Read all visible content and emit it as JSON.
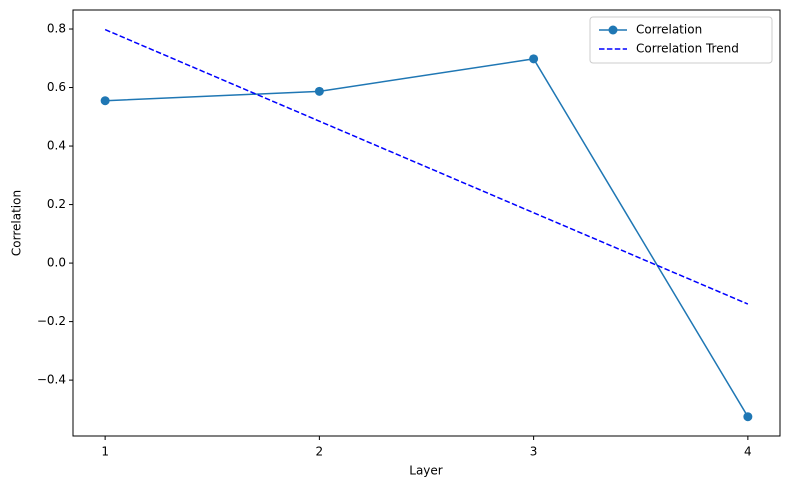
{
  "chart_data": {
    "type": "line",
    "x_label": "Layer",
    "y_label": "Correlation",
    "x": [
      1,
      2,
      3,
      4
    ],
    "series": [
      {
        "name": "Correlation",
        "color": "#1f77b4",
        "linestyle": "solid",
        "marker": "o",
        "values": [
          0.555,
          0.587,
          0.698,
          -0.525
        ]
      },
      {
        "name": "Correlation Trend",
        "color": "#0000ff",
        "linestyle": "dashed",
        "values": [
          0.798,
          0.485,
          0.172,
          -0.14
        ]
      }
    ],
    "xlim": [
      0.85,
      4.15
    ],
    "xticks": [
      1,
      2,
      3,
      4
    ],
    "ylim": [
      -0.591,
      0.865
    ],
    "yticks": [
      {
        "value": -0.4,
        "label": "−0.4"
      },
      {
        "value": -0.2,
        "label": "−0.2"
      },
      {
        "value": 0,
        "label": "0.0"
      },
      {
        "value": 0.2,
        "label": "0.2"
      },
      {
        "value": 0.4,
        "label": "0.4"
      },
      {
        "value": 0.6,
        "label": "0.6"
      },
      {
        "value": 0.8,
        "label": "0.8"
      }
    ],
    "legend": "upper right",
    "grid": false
  }
}
